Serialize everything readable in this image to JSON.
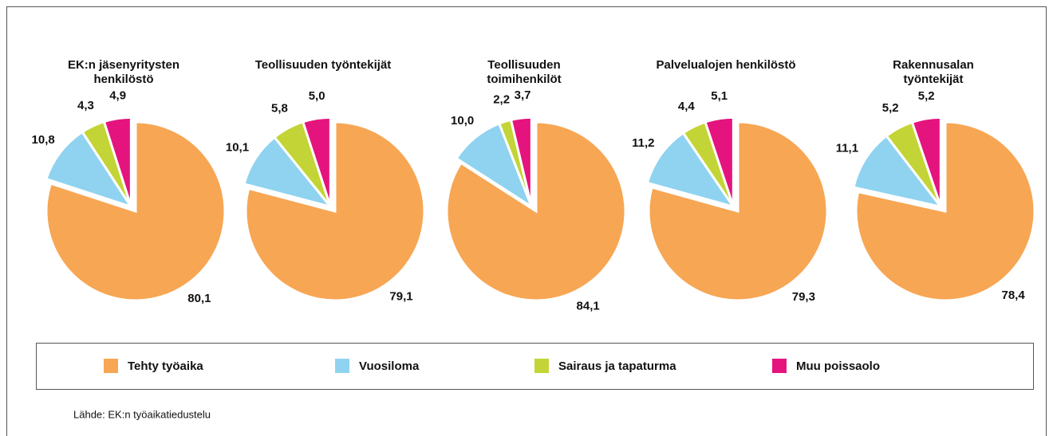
{
  "chart_data": [
    {
      "type": "pie",
      "title": "EK:n jäsenyritysten henkilöstö",
      "values": [
        80.1,
        10.8,
        4.3,
        4.9
      ],
      "value_labels": [
        "80,1",
        "10,8",
        "4,3",
        "4,9"
      ]
    },
    {
      "type": "pie",
      "title": "Teollisuuden työntekijät",
      "values": [
        79.1,
        10.1,
        5.8,
        5.0
      ],
      "value_labels": [
        "79,1",
        "10,1",
        "5,8",
        "5,0"
      ]
    },
    {
      "type": "pie",
      "title": "Teollisuuden toimihenkilöt",
      "values": [
        84.1,
        10.0,
        2.2,
        3.7
      ],
      "value_labels": [
        "84,1",
        "10,0",
        "2,2",
        "3,7"
      ]
    },
    {
      "type": "pie",
      "title": "Palvelualojen henkilöstö",
      "values": [
        79.3,
        11.2,
        4.4,
        5.1
      ],
      "value_labels": [
        "79,3",
        "11,2",
        "4,4",
        "5,1"
      ]
    },
    {
      "type": "pie",
      "title": "Rakennusalan työntekijät",
      "values": [
        78.4,
        11.1,
        5.2,
        5.2
      ],
      "value_labels": [
        "78,4",
        "11,1",
        "5,2",
        "5,2"
      ]
    }
  ],
  "legend": {
    "labels": [
      "Tehty työaika",
      "Vuosiloma",
      "Sairaus ja tapaturma",
      "Muu poissaolo"
    ],
    "colors": [
      "#f7a654",
      "#8fd3f0",
      "#c3d436",
      "#e5137d"
    ]
  },
  "source": "Lähde: EK:n työaikatiedustelu"
}
